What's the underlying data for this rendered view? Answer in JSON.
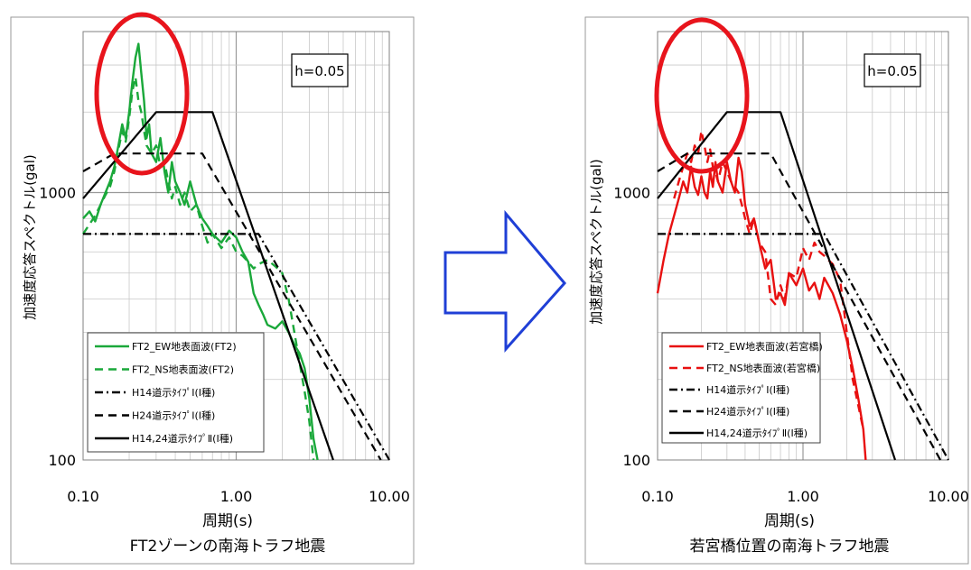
{
  "chart_data": [
    {
      "type": "line",
      "title": "FT2ゾーンの南海トラフ地震",
      "xlabel": "周期(s)",
      "ylabel": "加速度応答スペクトル(gal)",
      "xscale": "log",
      "yscale": "log",
      "xlim": [
        0.1,
        10
      ],
      "ylim": [
        100,
        4000
      ],
      "xticks": [
        "0.10",
        "1.00",
        "10.00"
      ],
      "yticks": [
        "100",
        "1000"
      ],
      "annotation": "h=0.05",
      "grid": true,
      "legend_position": "bottom-left",
      "series": [
        {
          "name": "FT2_EW地表面波(FT2)",
          "color": "#1aa83a",
          "style": "solid",
          "x": [
            0.1,
            0.11,
            0.12,
            0.13,
            0.14,
            0.15,
            0.16,
            0.17,
            0.18,
            0.19,
            0.2,
            0.21,
            0.22,
            0.23,
            0.24,
            0.25,
            0.26,
            0.27,
            0.28,
            0.3,
            0.32,
            0.34,
            0.36,
            0.38,
            0.4,
            0.43,
            0.46,
            0.5,
            0.55,
            0.6,
            0.65,
            0.7,
            0.8,
            0.9,
            1.0,
            1.1,
            1.2,
            1.3,
            1.4,
            1.5,
            1.6,
            1.8,
            2.0,
            2.2,
            2.4,
            2.6,
            2.8,
            3.0,
            3.2,
            3.4
          ],
          "y": [
            800,
            850,
            780,
            900,
            1000,
            1100,
            1250,
            1500,
            1800,
            1600,
            2000,
            2600,
            3200,
            3600,
            2800,
            2200,
            1600,
            1800,
            1400,
            1300,
            1600,
            1200,
            1000,
            1300,
            1100,
            1000,
            900,
            1100,
            900,
            800,
            750,
            700,
            650,
            720,
            680,
            600,
            550,
            420,
            380,
            350,
            320,
            310,
            330,
            300,
            270,
            250,
            220,
            170,
            120,
            95
          ]
        },
        {
          "name": "FT2_NS地表面波(FT2)",
          "color": "#1aa83a",
          "style": "dashed",
          "x": [
            0.1,
            0.11,
            0.12,
            0.13,
            0.14,
            0.15,
            0.16,
            0.17,
            0.18,
            0.19,
            0.2,
            0.21,
            0.22,
            0.23,
            0.24,
            0.25,
            0.26,
            0.28,
            0.3,
            0.32,
            0.34,
            0.36,
            0.38,
            0.4,
            0.43,
            0.46,
            0.5,
            0.55,
            0.6,
            0.65,
            0.7,
            0.8,
            0.9,
            1.0,
            1.1,
            1.2,
            1.3,
            1.4,
            1.6,
            1.8,
            2.0,
            2.2,
            2.4,
            2.6,
            2.8,
            3.0,
            3.2
          ],
          "y": [
            700,
            760,
            820,
            900,
            980,
            1050,
            1200,
            1450,
            1700,
            1550,
            1900,
            2400,
            2700,
            2200,
            2000,
            1700,
            1500,
            1400,
            1500,
            1250,
            1300,
            1100,
            950,
            1050,
            900,
            1000,
            850,
            900,
            750,
            650,
            700,
            620,
            680,
            600,
            580,
            550,
            520,
            540,
            560,
            530,
            500,
            400,
            300,
            230,
            180,
            140,
            100
          ]
        },
        {
          "name": "H14道示ﾀｲﾌﾟⅠ(Ⅰ種)",
          "color": "#000000",
          "style": "dashdot",
          "x": [
            0.1,
            1.4,
            10.0
          ],
          "y": [
            700,
            700,
            98
          ]
        },
        {
          "name": "H24道示ﾀｲﾌﾟⅠ(Ⅰ種)",
          "color": "#000000",
          "style": "dashed",
          "x": [
            0.1,
            0.16,
            0.6,
            8.8
          ],
          "y": [
            1200,
            1400,
            1400,
            95
          ]
        },
        {
          "name": "H14,24道示ﾀｲﾌﾟⅡ(Ⅰ種)",
          "color": "#000000",
          "style": "solid",
          "x": [
            0.1,
            0.3,
            0.7,
            4.3
          ],
          "y": [
            950,
            2000,
            2000,
            100
          ]
        }
      ]
    },
    {
      "type": "line",
      "title": "若宮橋位置の南海トラフ地震",
      "xlabel": "周期(s)",
      "ylabel": "加速度応答スペクトル(gal)",
      "xscale": "log",
      "yscale": "log",
      "xlim": [
        0.1,
        10
      ],
      "ylim": [
        100,
        4000
      ],
      "xticks": [
        "0.10",
        "1.00",
        "10.00"
      ],
      "yticks": [
        "100",
        "1000"
      ],
      "annotation": "h=0.05",
      "grid": true,
      "legend_position": "bottom-left",
      "series": [
        {
          "name": "FT2_EW地表面波(若宮橋)",
          "color": "#e81010",
          "style": "solid",
          "x": [
            0.1,
            0.11,
            0.12,
            0.13,
            0.14,
            0.15,
            0.16,
            0.17,
            0.18,
            0.19,
            0.2,
            0.21,
            0.22,
            0.23,
            0.24,
            0.25,
            0.26,
            0.28,
            0.3,
            0.32,
            0.34,
            0.36,
            0.38,
            0.4,
            0.43,
            0.46,
            0.5,
            0.55,
            0.6,
            0.65,
            0.7,
            0.75,
            0.8,
            0.9,
            1.0,
            1.1,
            1.2,
            1.3,
            1.4,
            1.6,
            1.8,
            2.0,
            2.2,
            2.4,
            2.6,
            2.7
          ],
          "y": [
            420,
            560,
            700,
            820,
            950,
            1100,
            1000,
            1250,
            1050,
            980,
            1150,
            1000,
            950,
            1200,
            1050,
            1300,
            1100,
            1000,
            1300,
            1100,
            1000,
            1350,
            1200,
            900,
            750,
            800,
            650,
            520,
            560,
            400,
            420,
            380,
            500,
            450,
            520,
            430,
            460,
            400,
            480,
            420,
            350,
            280,
            220,
            170,
            130,
            90
          ]
        },
        {
          "name": "FT2_NS地表面波(若宮橋)",
          "color": "#e81010",
          "style": "dashed",
          "x": [
            0.13,
            0.14,
            0.15,
            0.16,
            0.17,
            0.18,
            0.19,
            0.2,
            0.21,
            0.22,
            0.23,
            0.24,
            0.25,
            0.26,
            0.28,
            0.3,
            0.32,
            0.34,
            0.36,
            0.38,
            0.4,
            0.43,
            0.46,
            0.5,
            0.55,
            0.6,
            0.65,
            0.7,
            0.75,
            0.8,
            0.9,
            1.0,
            1.1,
            1.2,
            1.3,
            1.4,
            1.6,
            1.8,
            2.0,
            2.2,
            2.4,
            2.6
          ],
          "y": [
            950,
            1100,
            1250,
            1400,
            1300,
            1500,
            1400,
            1700,
            1500,
            1300,
            1450,
            1250,
            1200,
            1100,
            1300,
            1200,
            1100,
            1050,
            1000,
            900,
            800,
            700,
            800,
            650,
            600,
            400,
            380,
            450,
            400,
            500,
            480,
            620,
            560,
            650,
            600,
            580,
            540,
            470,
            300,
            200,
            160,
            130
          ]
        },
        {
          "name": "H14道示ﾀｲﾌﾟⅠ(Ⅰ種)",
          "color": "#000000",
          "style": "dashdot",
          "x": [
            0.1,
            1.4,
            10.0
          ],
          "y": [
            700,
            700,
            98
          ]
        },
        {
          "name": "H24道示ﾀｲﾌﾟⅠ(Ⅰ種)",
          "color": "#000000",
          "style": "dashed",
          "x": [
            0.1,
            0.16,
            0.6,
            8.8
          ],
          "y": [
            1200,
            1400,
            1400,
            95
          ]
        },
        {
          "name": "H14,24道示ﾀｲﾌﾟⅡ(Ⅰ種)",
          "color": "#000000",
          "style": "solid",
          "x": [
            0.1,
            0.3,
            0.7,
            4.3
          ],
          "y": [
            950,
            2000,
            2000,
            100
          ]
        }
      ]
    }
  ],
  "highlight": {
    "color": "#e8141c"
  },
  "arrow": {
    "color": "#1f3fd6"
  }
}
